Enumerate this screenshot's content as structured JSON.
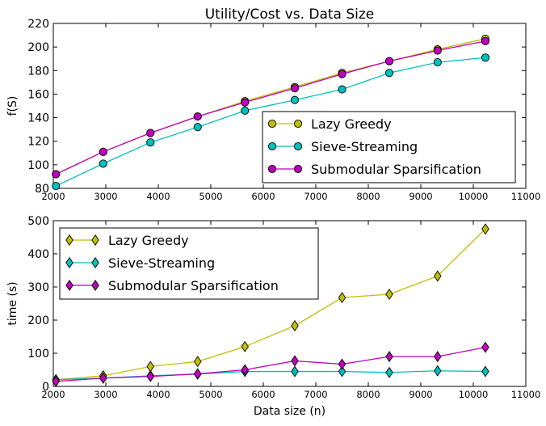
{
  "chart_data": [
    {
      "type": "line",
      "title": "Utility/Cost vs. Data Size",
      "xlabel": "",
      "ylabel": "f(S)",
      "xlim": [
        2000,
        11000
      ],
      "ylim": [
        80,
        220
      ],
      "x_ticks": [
        2000,
        3000,
        4000,
        5000,
        6000,
        7000,
        8000,
        9000,
        10000,
        11000
      ],
      "y_ticks": [
        80,
        100,
        120,
        140,
        160,
        180,
        200,
        220
      ],
      "legend_position": "lower-right",
      "x": [
        2050,
        2950,
        3850,
        4750,
        5650,
        6600,
        7500,
        8400,
        9320,
        10230
      ],
      "series": [
        {
          "name": "Lazy Greedy",
          "color": "#bfbf00",
          "marker": "circle",
          "values": [
            92,
            111,
            127,
            141,
            154,
            166,
            178,
            188,
            198,
            207
          ]
        },
        {
          "name": "Sieve-Streaming",
          "color": "#00bfbf",
          "marker": "circle",
          "values": [
            82,
            101,
            119,
            132,
            146,
            155,
            164,
            178,
            187,
            191
          ]
        },
        {
          "name": "Submodular Sparsification",
          "color": "#bf00bf",
          "marker": "circle",
          "values": [
            92,
            111,
            127,
            141,
            153,
            165,
            177,
            188,
            197,
            205
          ]
        }
      ]
    },
    {
      "type": "line",
      "title": "",
      "xlabel": "Data size (n)",
      "ylabel": "time (s)",
      "xlim": [
        2000,
        11000
      ],
      "ylim": [
        0,
        500
      ],
      "x_ticks": [
        2000,
        3000,
        4000,
        5000,
        6000,
        7000,
        8000,
        9000,
        10000,
        11000
      ],
      "y_ticks": [
        0,
        100,
        200,
        300,
        400,
        500
      ],
      "legend_position": "upper-left",
      "x": [
        2050,
        2950,
        3850,
        4750,
        5650,
        6600,
        7500,
        8400,
        9320,
        10230
      ],
      "series": [
        {
          "name": "Lazy Greedy",
          "color": "#bfbf00",
          "marker": "diamond",
          "values": [
            20,
            32,
            60,
            75,
            120,
            183,
            268,
            278,
            333,
            475
          ]
        },
        {
          "name": "Sieve-Streaming",
          "color": "#00bfbf",
          "marker": "diamond",
          "values": [
            20,
            25,
            32,
            37,
            45,
            45,
            45,
            42,
            47,
            45
          ]
        },
        {
          "name": "Submodular Sparsification",
          "color": "#bf00bf",
          "marker": "diamond",
          "values": [
            15,
            25,
            30,
            38,
            50,
            77,
            67,
            90,
            90,
            118
          ]
        }
      ]
    }
  ]
}
